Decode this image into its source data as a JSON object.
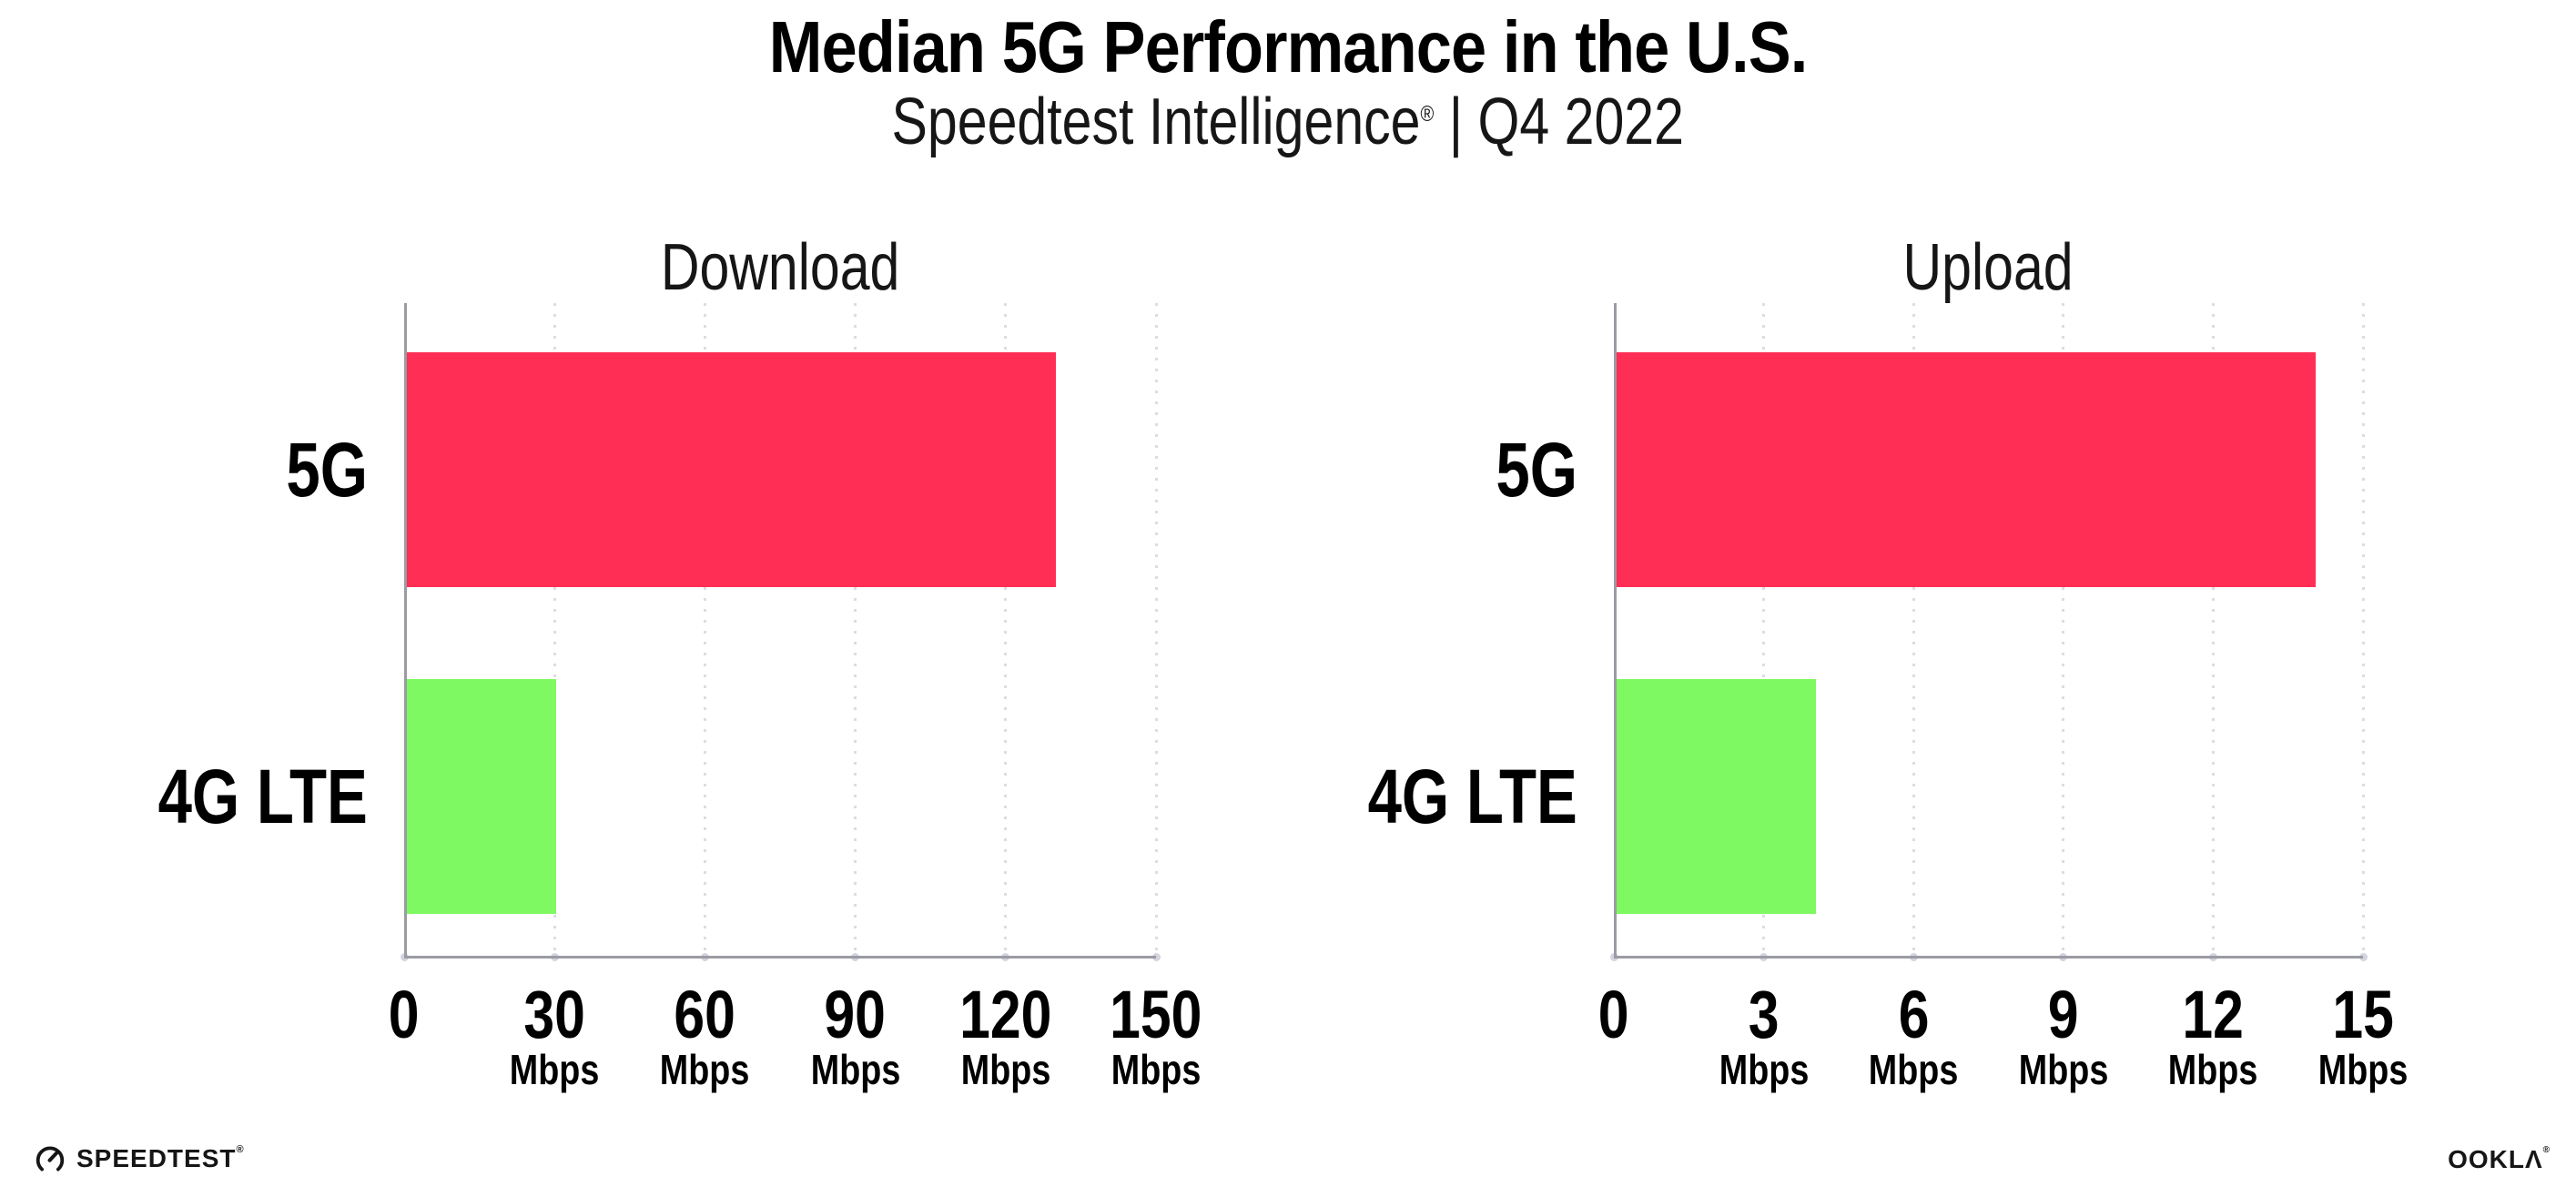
{
  "header": {
    "title": "Median 5G Performance in the U.S.",
    "subtitle_brand": "Speedtest Intelligence",
    "subtitle_reg": "®",
    "subtitle_rest": " | Q4 2022"
  },
  "chart_data": [
    {
      "type": "bar",
      "orientation": "horizontal",
      "title": "Download",
      "categories": [
        "5G",
        "4G LTE"
      ],
      "values": [
        129.5,
        29.8
      ],
      "unit": "Mbps",
      "xlim": [
        0,
        150
      ],
      "xticks": [
        0,
        30,
        60,
        90,
        120,
        150
      ],
      "bar_colors": [
        "#FF2E55",
        "#7FF962"
      ],
      "grid": "dotted-vertical",
      "legend": "none"
    },
    {
      "type": "bar",
      "orientation": "horizontal",
      "title": "Upload",
      "categories": [
        "5G",
        "4G LTE"
      ],
      "values": [
        14.0,
        4.0
      ],
      "unit": "Mbps",
      "xlim": [
        0,
        15
      ],
      "xticks": [
        0,
        3,
        6,
        9,
        12,
        15
      ],
      "bar_colors": [
        "#FF2E55",
        "#7FF962"
      ],
      "grid": "dotted-vertical",
      "legend": "none"
    }
  ],
  "footer": {
    "speedtest_label": "SPEEDTEST",
    "speedtest_reg": "®",
    "ookla_label": "OOKLΛ",
    "ookla_reg": "®"
  },
  "colors": {
    "bar_5g": "#FF2E55",
    "bar_4g_lte": "#7FF962",
    "axis": "#9b9ba3",
    "gridline": "#dcdce8",
    "text": "#111111",
    "background": "#ffffff"
  }
}
